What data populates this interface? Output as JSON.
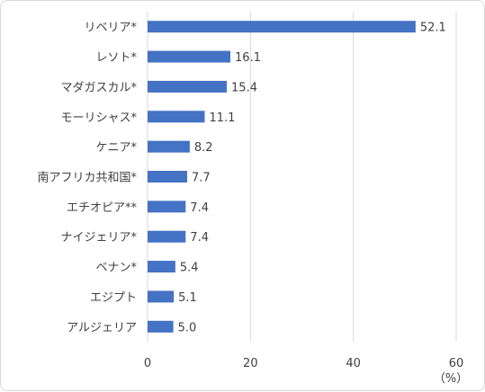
{
  "chart_data": {
    "type": "bar",
    "orientation": "horizontal",
    "categories": [
      "リベリア*",
      "レソト*",
      "マダガスカル*",
      "モーリシャス*",
      "ケニア*",
      "南アフリカ共和国*",
      "エチオピア**",
      "ナイジェリア*",
      "ベナン*",
      "エジプト",
      "アルジェリア"
    ],
    "values": [
      52.1,
      16.1,
      15.4,
      11.1,
      8.2,
      7.7,
      7.4,
      7.4,
      5.4,
      5.1,
      5.0
    ],
    "value_labels": [
      "52.1",
      "16.1",
      "15.4",
      "11.1",
      "8.2",
      "7.7",
      "7.4",
      "7.4",
      "5.4",
      "5.1",
      "5.0"
    ],
    "xlim": [
      0,
      60
    ],
    "xticks": [
      0,
      20,
      40,
      60
    ],
    "xtick_labels": [
      "0",
      "20",
      "40",
      "60"
    ],
    "x_unit": "（%）",
    "title": "",
    "xlabel": "",
    "ylabel": "",
    "grid": "vertical",
    "legend": "none",
    "bar_color": "#4472c4",
    "grid_color": "#d9d9d9"
  }
}
